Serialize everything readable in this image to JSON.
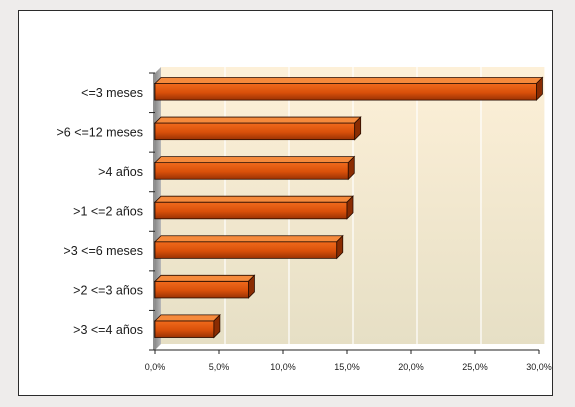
{
  "chart_data": {
    "type": "bar",
    "orientation": "horizontal",
    "categories": [
      "<=3 meses",
      ">6 <=12 meses",
      ">4 años",
      ">1 <=2 años",
      ">3 <=6 meses",
      ">2 <=3 años",
      ">3 <=4 años"
    ],
    "values": [
      29.8,
      15.6,
      15.1,
      15.0,
      14.2,
      7.3,
      4.6
    ],
    "xlim": [
      0,
      30
    ],
    "x_ticks": [
      "0,0%",
      "5,0%",
      "10,0%",
      "15,0%",
      "20,0%",
      "25,0%",
      "30,0%"
    ],
    "grid": "vertical",
    "style": "3d",
    "bar_color": "#e0520c",
    "plot_background": [
      "#fdf0d8",
      "#e6dfc5"
    ]
  }
}
